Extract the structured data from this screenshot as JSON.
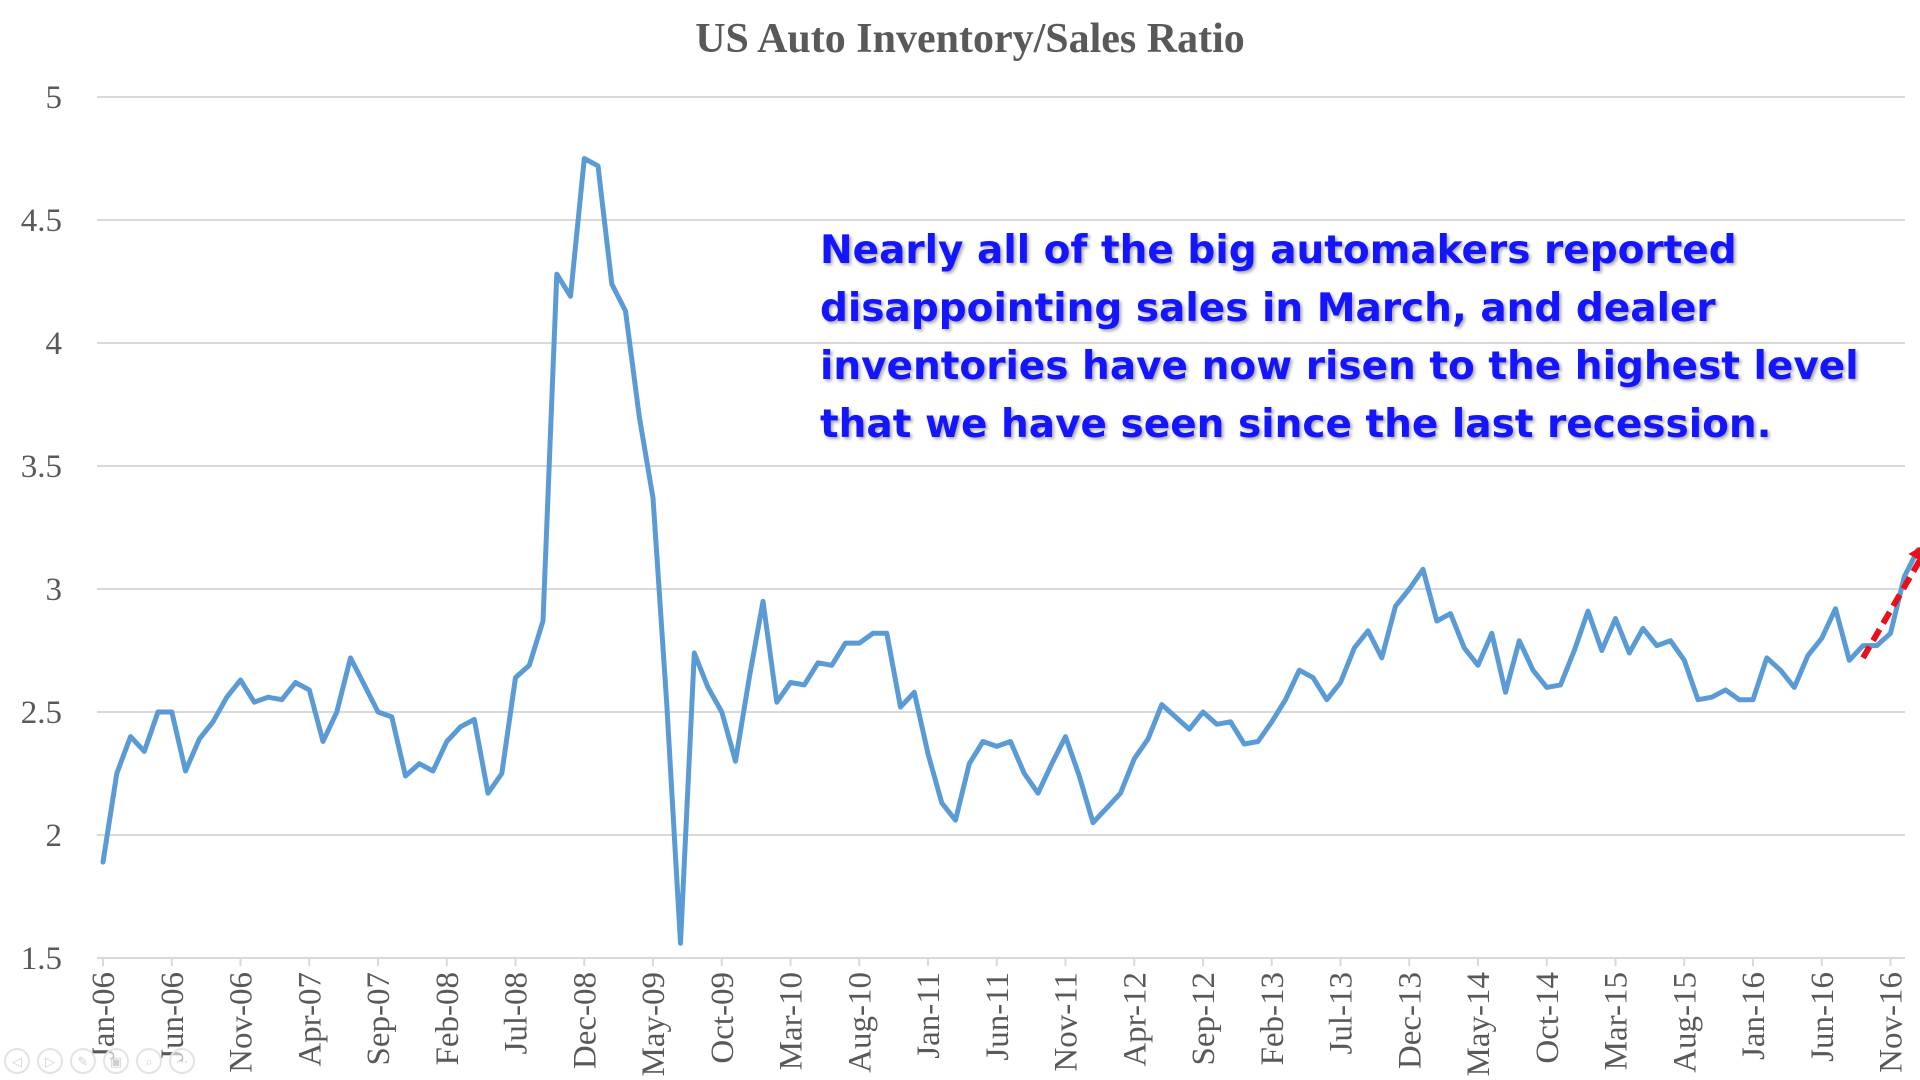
{
  "colors": {
    "series_line": "#5b9bd5",
    "trend_arrow": "#e8101a",
    "annotation_text": "#1414ff",
    "gridline": "#d9d9d9",
    "axis_text": "#595959"
  },
  "annotation": {
    "lines": [
      "Nearly all of the big automakers reported",
      "disappointing sales in March, and dealer",
      "inventories have now risen to the highest level",
      "that we have seen since the last recession."
    ]
  },
  "nav_controls": [
    {
      "icon": "arrow-left-icon",
      "glyph": "◁"
    },
    {
      "icon": "arrow-right-icon",
      "glyph": "▷"
    },
    {
      "icon": "pen-icon",
      "glyph": "✎"
    },
    {
      "icon": "slides-icon",
      "glyph": "▣"
    },
    {
      "icon": "zoom-icon",
      "glyph": "⌕"
    },
    {
      "icon": "more-icon",
      "glyph": "⋯"
    }
  ],
  "chart_data": {
    "type": "line",
    "title": "US Auto Inventory/Sales Ratio",
    "xlabel": "",
    "ylabel": "",
    "ylim": [
      1.5,
      5
    ],
    "yticks": [
      1.5,
      2,
      2.5,
      3,
      3.5,
      4,
      4.5,
      5
    ],
    "grid": true,
    "legend": "none",
    "x_start": "Jan-06",
    "x_tick_labels": [
      "Jan-06",
      "Jun-06",
      "Nov-06",
      "Apr-07",
      "Sep-07",
      "Feb-08",
      "Jul-08",
      "Dec-08",
      "May-09",
      "Oct-09",
      "Mar-10",
      "Aug-10",
      "Jan-11",
      "Jun-11",
      "Nov-11",
      "Apr-12",
      "Sep-12",
      "Feb-13",
      "Jul-13",
      "Dec-13",
      "May-14",
      "Oct-14",
      "Mar-15",
      "Aug-15",
      "Jan-16",
      "Jun-16",
      "Nov-16"
    ],
    "series": [
      {
        "values": [
          1.89,
          2.25,
          2.4,
          2.34,
          2.5,
          2.5,
          2.26,
          2.39,
          2.46,
          2.56,
          2.63,
          2.54,
          2.56,
          2.55,
          2.62,
          2.59,
          2.38,
          2.5,
          2.72,
          2.61,
          2.5,
          2.48,
          2.24,
          2.29,
          2.26,
          2.38,
          2.44,
          2.47,
          2.17,
          2.25,
          2.64,
          2.69,
          2.87,
          4.28,
          4.19,
          4.75,
          4.72,
          4.24,
          4.13,
          3.7,
          3.37,
          2.53,
          1.56,
          2.74,
          2.6,
          2.5,
          2.3,
          2.64,
          2.95,
          2.54,
          2.62,
          2.61,
          2.7,
          2.69,
          2.78,
          2.78,
          2.82,
          2.82,
          2.52,
          2.58,
          2.33,
          2.13,
          2.06,
          2.29,
          2.38,
          2.36,
          2.38,
          2.25,
          2.17,
          2.29,
          2.4,
          2.24,
          2.05,
          2.11,
          2.17,
          2.31,
          2.39,
          2.53,
          2.48,
          2.43,
          2.5,
          2.45,
          2.46,
          2.37,
          2.38,
          2.46,
          2.55,
          2.67,
          2.64,
          2.55,
          2.62,
          2.76,
          2.83,
          2.72,
          2.93,
          3.0,
          3.08,
          2.87,
          2.9,
          2.76,
          2.69,
          2.82,
          2.58,
          2.79,
          2.67,
          2.6,
          2.61,
          2.75,
          2.91,
          2.75,
          2.88,
          2.74,
          2.84,
          2.77,
          2.79,
          2.71,
          2.55,
          2.56,
          2.59,
          2.55,
          2.55,
          2.72,
          2.67,
          2.6,
          2.73,
          2.8,
          2.92,
          2.71,
          2.77,
          2.77,
          2.82,
          3.05,
          3.16
        ]
      }
    ],
    "trend_arrow": {
      "from_index": 128,
      "to_index": 133,
      "from_value": 2.72,
      "to_value": 3.2
    }
  }
}
